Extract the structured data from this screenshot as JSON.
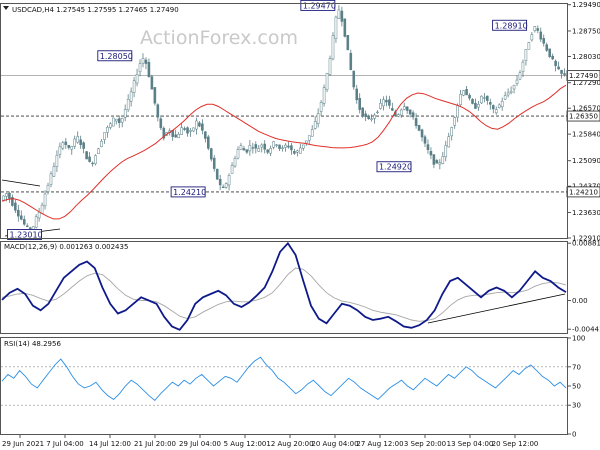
{
  "chart_data": [
    {
      "type": "candlestick",
      "header": "USDCAD,H4  1.27545 1.27595 1.27465 1.27490",
      "watermark": "ActionForex.com",
      "ylim": [
        1.2291,
        1.2951
      ],
      "y_ticks": [
        1.2291,
        1.2363,
        1.2437,
        1.2509,
        1.2584,
        1.2657,
        1.2729,
        1.2803,
        1.2875,
        1.2949
      ],
      "y_tick_labels": [
        "1.22910",
        "1.23630",
        "1.24370",
        "1.25090",
        "1.25840",
        "1.26570",
        "1.27290",
        "1.28030",
        "1.28750",
        "1.29490"
      ],
      "x_tick_labels": [
        "29 Jun 2021",
        "7 Jul 04:00",
        "14 Jul 12:00",
        "21 Jul 20:00",
        "29 Jul 04:00",
        "5 Aug 12:00",
        "12 Aug 20:00",
        "20 Aug 04:00",
        "27 Aug 12:00",
        "3 Sep 20:00",
        "13 Sep 04:00",
        "20 Sep 12:00"
      ],
      "price_path": [
        1.2398,
        1.2408,
        1.2418,
        1.2408,
        1.2392,
        1.238,
        1.2365,
        1.2352,
        1.234,
        1.2325,
        1.2318,
        1.2312,
        1.2325,
        1.2345,
        1.2362,
        1.238,
        1.2408,
        1.2432,
        1.2455,
        1.248,
        1.2505,
        1.2528,
        1.2548,
        1.2568,
        1.2555,
        1.254,
        1.2548,
        1.2562,
        1.2578,
        1.2565,
        1.2548,
        1.253,
        1.2512,
        1.2498,
        1.2508,
        1.2528,
        1.2548,
        1.2568,
        1.2588,
        1.2598,
        1.2608,
        1.262,
        1.2632,
        1.2625,
        1.2612,
        1.2638,
        1.2658,
        1.268,
        1.2702,
        1.2728,
        1.2755,
        1.278,
        1.28,
        1.2795,
        1.2768,
        1.273,
        1.2695,
        1.2658,
        1.262,
        1.2592,
        1.2575,
        1.2588,
        1.2598,
        1.2585,
        1.2572,
        1.2582,
        1.2595,
        1.2605,
        1.2595,
        1.2582,
        1.2592,
        1.2605,
        1.262,
        1.2608,
        1.2595,
        1.2575,
        1.255,
        1.2522,
        1.2495,
        1.247,
        1.2448,
        1.2428,
        1.243,
        1.245,
        1.2472,
        1.2495,
        1.2518,
        1.2538,
        1.2552,
        1.2542,
        1.2532,
        1.2545,
        1.2555,
        1.2548,
        1.2538,
        1.2548,
        1.2556,
        1.2545,
        1.2535,
        1.2545,
        1.2556,
        1.2562,
        1.255,
        1.2538,
        1.2545,
        1.2555,
        1.2548,
        1.2538,
        1.2528,
        1.2535,
        1.2545,
        1.2555,
        1.2565,
        1.2575,
        1.2588,
        1.2605,
        1.2628,
        1.2655,
        1.2685,
        1.272,
        1.276,
        1.2805,
        1.2855,
        1.2905,
        1.294,
        1.2918,
        1.2882,
        1.2838,
        1.279,
        1.2745,
        1.2702,
        1.2672,
        1.2652,
        1.264,
        1.263,
        1.2622,
        1.2628,
        1.2638,
        1.2648,
        1.266,
        1.2672,
        1.2685,
        1.2672,
        1.2658,
        1.2645,
        1.2635,
        1.2642,
        1.2655,
        1.2668,
        1.2658,
        1.2645,
        1.2632,
        1.262,
        1.2605,
        1.2588,
        1.2568,
        1.255,
        1.2535,
        1.252,
        1.2505,
        1.2495,
        1.2502,
        1.2518,
        1.2538,
        1.2562,
        1.259,
        1.2618,
        1.2645,
        1.2672,
        1.27,
        1.2712,
        1.2698,
        1.2682,
        1.2668,
        1.2658,
        1.2668,
        1.268,
        1.2692,
        1.2685,
        1.2672,
        1.266,
        1.2648,
        1.2655,
        1.2665,
        1.2678,
        1.2688,
        1.2698,
        1.2705,
        1.2715,
        1.2728,
        1.2745,
        1.2768,
        1.2795,
        1.2822,
        1.2848,
        1.287,
        1.2885,
        1.2878,
        1.2862,
        1.2845,
        1.283,
        1.2815,
        1.28,
        1.2785,
        1.277,
        1.276,
        1.2752,
        1.2749
      ],
      "ma_path": [
        1.2395,
        1.24,
        1.2402,
        1.2398,
        1.239,
        1.238,
        1.237,
        1.236,
        1.2352,
        1.2345,
        1.2345,
        1.2352,
        1.2365,
        1.2382,
        1.2398,
        1.2412,
        1.2428,
        1.2445,
        1.2462,
        1.2478,
        1.2492,
        1.2505,
        1.2515,
        1.2522,
        1.253,
        1.2538,
        1.2548,
        1.2558,
        1.2572,
        1.2585,
        1.2595,
        1.2608,
        1.2622,
        1.2638,
        1.2652,
        1.2662,
        1.2668,
        1.2668,
        1.2662,
        1.2652,
        1.2642,
        1.2632,
        1.2622,
        1.2612,
        1.2602,
        1.2592,
        1.2585,
        1.2578,
        1.2572,
        1.2568,
        1.2565,
        1.2562,
        1.256,
        1.2558,
        1.2555,
        1.2552,
        1.255,
        1.2548,
        1.2546,
        1.2545,
        1.2545,
        1.2546,
        1.2548,
        1.2551,
        1.2555,
        1.2562,
        1.2575,
        1.2595,
        1.2618,
        1.2645,
        1.2668,
        1.2685,
        1.2695,
        1.27,
        1.2698,
        1.2692,
        1.2685,
        1.268,
        1.2675,
        1.267,
        1.2665,
        1.2658,
        1.2648,
        1.2635,
        1.262,
        1.2608,
        1.26,
        1.2598,
        1.2605,
        1.2615,
        1.2628,
        1.264,
        1.265,
        1.266,
        1.2668,
        1.2675,
        1.2685,
        1.2698,
        1.2712,
        1.2722
      ],
      "levels": [
        {
          "value": 1.2635,
          "label": "1.26350",
          "style": "dashed"
        },
        {
          "value": 1.2421,
          "label": "1.24210",
          "style": "dashed"
        },
        {
          "value": 1.2749,
          "label": "1.27490",
          "style": "solid"
        }
      ],
      "callouts": [
        {
          "text": "1.29470",
          "value": 1.2947,
          "t": 0.56
        },
        {
          "text": "1.28050",
          "value": 1.2805,
          "t": 0.2
        },
        {
          "text": "1.28910",
          "value": 1.2891,
          "t": 0.9
        },
        {
          "text": "1.24210",
          "value": 1.2421,
          "t": 0.33
        },
        {
          "text": "1.24920",
          "value": 1.2492,
          "t": 0.695
        },
        {
          "text": "1.23010",
          "value": 1.2301,
          "t": 0.04
        }
      ]
    },
    {
      "type": "line",
      "header": "MACD(12,26,9) 0.001263 0.002435",
      "ylim": [
        -0.005,
        0.009
      ],
      "y_ticks": [
        0.008816,
        0.0,
        -0.004416
      ],
      "y_tick_labels": [
        "0.008816",
        "0.00",
        "-0.004416"
      ],
      "series": [
        {
          "values": [
            0.0001,
            0.0012,
            0.0018,
            0.001,
            -0.0008,
            -0.0015,
            -0.0005,
            0.0015,
            0.0035,
            0.0045,
            0.0055,
            0.006,
            0.005,
            0.002,
            -0.0005,
            -0.002,
            -0.0015,
            -0.0005,
            0.0005,
            0.0,
            -0.0005,
            -0.0025,
            -0.004,
            -0.0045,
            -0.003,
            -0.0005,
            0.0005,
            0.001,
            0.0015,
            0.0008,
            -0.0005,
            -0.001,
            -0.0003,
            0.0008,
            0.002,
            0.0045,
            0.0075,
            0.0088,
            0.007,
            0.003,
            -0.0008,
            -0.0028,
            -0.0035,
            -0.002,
            -0.0005,
            -0.0008,
            -0.0015,
            -0.0025,
            -0.003,
            -0.0028,
            -0.0025,
            -0.0032,
            -0.004,
            -0.0042,
            -0.0038,
            -0.003,
            -0.0015,
            0.001,
            0.003,
            0.0035,
            0.0025,
            0.0015,
            0.0005,
            0.0015,
            0.002,
            0.0015,
            0.0005,
            0.0015,
            0.003,
            0.0045,
            0.0035,
            0.003,
            0.002,
            0.0013
          ]
        },
        {
          "values": [
            0.0005,
            0.0007,
            0.001,
            0.0011,
            0.0008,
            0.0003,
            -0.0001,
            0.0002,
            0.001,
            0.002,
            0.003,
            0.0038,
            0.0042,
            0.004,
            0.003,
            0.0018,
            0.0008,
            0.0002,
            0.0,
            0.0,
            -0.0002,
            -0.0008,
            -0.0016,
            -0.0024,
            -0.0028,
            -0.0025,
            -0.0018,
            -0.0012,
            -0.0006,
            -0.0002,
            -0.0001,
            -0.0002,
            -0.0002,
            0.0001,
            0.0005,
            0.0012,
            0.0025,
            0.004,
            0.005,
            0.0048,
            0.0038,
            0.0024,
            0.0012,
            0.0004,
            -0.0001,
            -0.0003,
            -0.0006,
            -0.001,
            -0.0015,
            -0.0018,
            -0.002,
            -0.0022,
            -0.0026,
            -0.003,
            -0.0032,
            -0.0031,
            -0.0028,
            -0.0019,
            -0.0008,
            0.0001,
            0.0006,
            0.0008,
            0.0008,
            0.001,
            0.0012,
            0.0013,
            0.0012,
            0.0013,
            0.0016,
            0.0022,
            0.0026,
            0.0028,
            0.0027,
            0.0024
          ]
        }
      ]
    },
    {
      "type": "line",
      "header": "RSI(14) 48.2956",
      "ylim": [
        0,
        100
      ],
      "y_ticks": [
        100,
        70,
        50,
        30,
        0
      ],
      "y_tick_labels": [
        "100",
        "70",
        "50",
        "30",
        "0"
      ],
      "series": [
        {
          "values": [
            55,
            62,
            58,
            66,
            60,
            52,
            48,
            56,
            64,
            72,
            78,
            70,
            60,
            52,
            48,
            50,
            54,
            46,
            40,
            36,
            42,
            50,
            56,
            52,
            46,
            40,
            35,
            42,
            48,
            54,
            50,
            56,
            52,
            58,
            62,
            56,
            50,
            55,
            60,
            58,
            54,
            62,
            70,
            76,
            80,
            72,
            66,
            58,
            54,
            48,
            42,
            46,
            52,
            56,
            50,
            44,
            40,
            46,
            52,
            58,
            54,
            48,
            44,
            40,
            36,
            42,
            48,
            52,
            56,
            50,
            46,
            52,
            58,
            54,
            50,
            56,
            62,
            58,
            64,
            70,
            66,
            60,
            56,
            52,
            48,
            54,
            60,
            66,
            62,
            68,
            72,
            66,
            60,
            56,
            50,
            54,
            48
          ]
        }
      ]
    }
  ]
}
